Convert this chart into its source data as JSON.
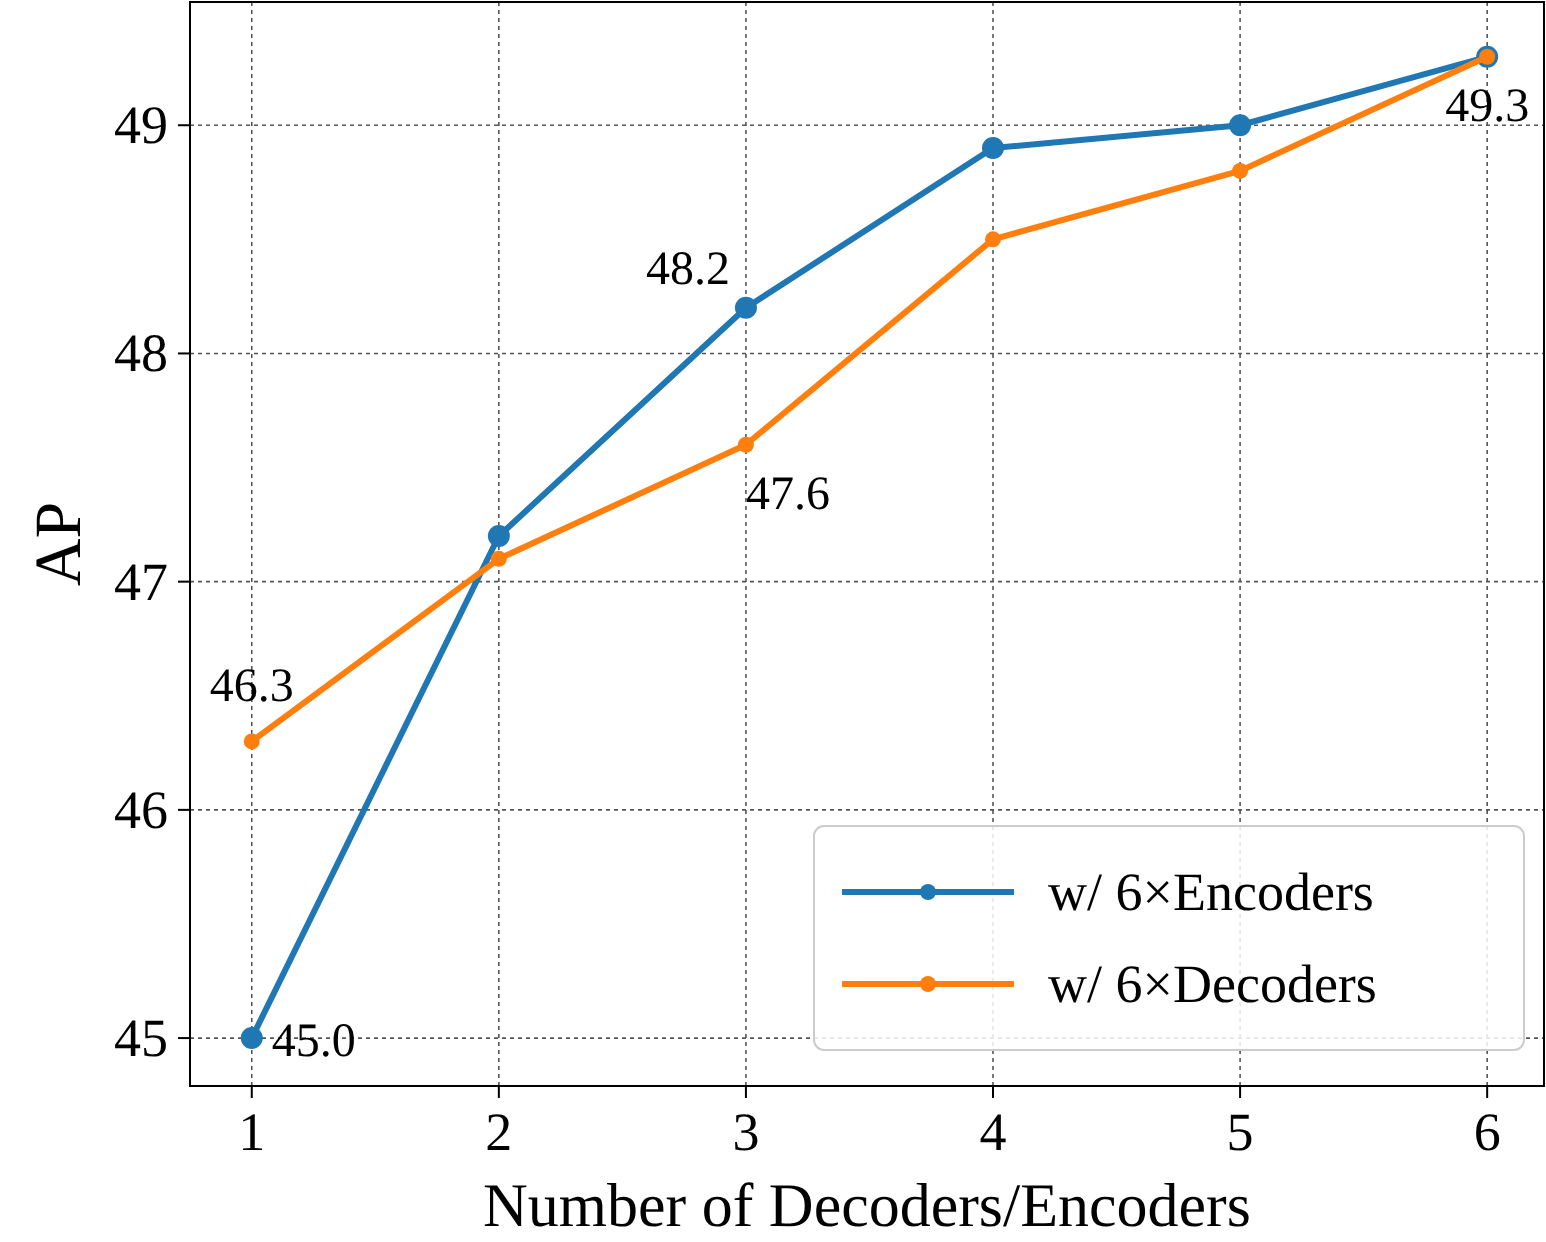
{
  "chart_data": {
    "type": "line",
    "xlabel": "Number of Decoders/Encoders",
    "ylabel": "AP",
    "x": [
      1,
      2,
      3,
      4,
      5,
      6
    ],
    "xlim": [
      0.75,
      6.23
    ],
    "xticks": [
      1,
      2,
      3,
      4,
      5,
      6
    ],
    "ylim": [
      44.79,
      49.54
    ],
    "yticks": [
      45,
      46,
      47,
      48,
      49
    ],
    "series": [
      {
        "name": "w/ 6×Encoders",
        "color": "#1f77b4",
        "values": [
          45.0,
          47.2,
          48.2,
          48.9,
          49.0,
          49.3
        ],
        "value_labels": [
          "45.0",
          null,
          "48.2",
          null,
          null,
          null
        ]
      },
      {
        "name": "w/ 6×Decoders",
        "color": "#ff7f0e",
        "values": [
          46.3,
          47.1,
          47.6,
          48.5,
          48.8,
          49.3
        ],
        "value_labels": [
          "46.3",
          null,
          "47.6",
          null,
          null,
          "49.3"
        ]
      }
    ],
    "grid": true,
    "legend": "bottom right",
    "marker": "circle",
    "line_style": "solid"
  }
}
